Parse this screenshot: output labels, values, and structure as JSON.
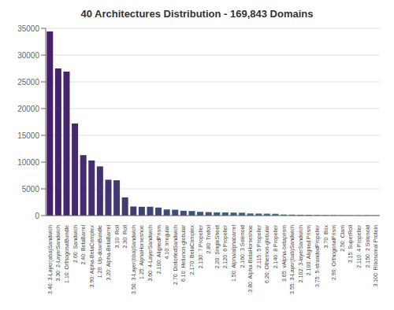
{
  "chart_data": {
    "type": "bar",
    "title": "40 Architectures Distribution - 169,843 Domains",
    "categories": [
      "3.40: 3-Layer(aba)Sandwich",
      "3.30: 2-LayerSandwich",
      "1.10: OrthogonalBundle",
      "2.60: Sandwich",
      "2.40: BetaBarrel",
      "3.90: Alpha-BetaComplex",
      "1.20: Up-downBundle",
      "3.20: Alpha-BetaBarrel",
      "3.10: Roll",
      "2.30: Roll",
      "3.50: 3-Layer(bba)Sandwich",
      "1.25: AlphaHorseshoe",
      "3.60: 4-LayerSandwich",
      "2.100: AlignedPrism",
      "4.10: Irregular",
      "2.70: DistortedSandwich",
      "6.10: Helixnon-globular",
      "2.170: BetaComplex",
      "2.130: 7 Propeller",
      "2.80: Trefoil",
      "2.20: SingleSheet",
      "2.120: 6 Propeller",
      "1.50: Alpha/alphabarrel",
      "2.160: 3 Solenoid",
      "3.80: Alpha-BetaHorseshoe",
      "2.115: 5 Propeller",
      "6.20: Othernon-globular",
      "2.140: 8 Propeller",
      "3.65: vAlpha-betaprism",
      "3.55: 3-Layer(bab)Sandwich",
      "2.102: 3-layerSandwich",
      "2.100: Aligned Prism",
      "3.75: 5-strandedPropeller",
      "3.70: Box",
      "2.90: OrthogonalPrism",
      "2.50: Clam",
      "3.15: SuperRoll",
      "2.110: 4 Propeller",
      "2.150: 2 Solenoid",
      "3.100: Ribosomal Protein"
    ],
    "values": [
      34400,
      27500,
      26900,
      17200,
      11300,
      10300,
      9200,
      6700,
      6600,
      3400,
      1700,
      1650,
      1650,
      1500,
      1150,
      1100,
      900,
      850,
      700,
      650,
      600,
      580,
      560,
      540,
      400,
      380,
      360,
      340,
      200,
      180,
      160,
      140,
      120,
      100,
      90,
      80,
      70,
      65,
      60,
      50
    ],
    "colors": [
      "#471f6b",
      "#47226c",
      "#46256d",
      "#45286e",
      "#452b6f",
      "#442e70",
      "#433171",
      "#433572",
      "#423872",
      "#423b73",
      "#413e74",
      "#404175",
      "#404476",
      "#3f4777",
      "#3e4b78",
      "#3e4e79",
      "#3d517a",
      "#3c547b",
      "#3c577c",
      "#3b5a7c",
      "#3a5d7d",
      "#3a617e",
      "#39647f",
      "#386780",
      "#386a81",
      "#376d82",
      "#367083",
      "#367384",
      "#357685",
      "#347a86",
      "#347d87",
      "#338087",
      "#328388",
      "#328689",
      "#31898a",
      "#318c8b",
      "#30908c",
      "#2f938d",
      "#2f968e",
      "#2e998f"
    ],
    "ylim": [
      0,
      35000
    ],
    "yticks": [
      0,
      5000,
      10000,
      15000,
      20000,
      25000,
      30000,
      35000
    ],
    "grid": true
  }
}
